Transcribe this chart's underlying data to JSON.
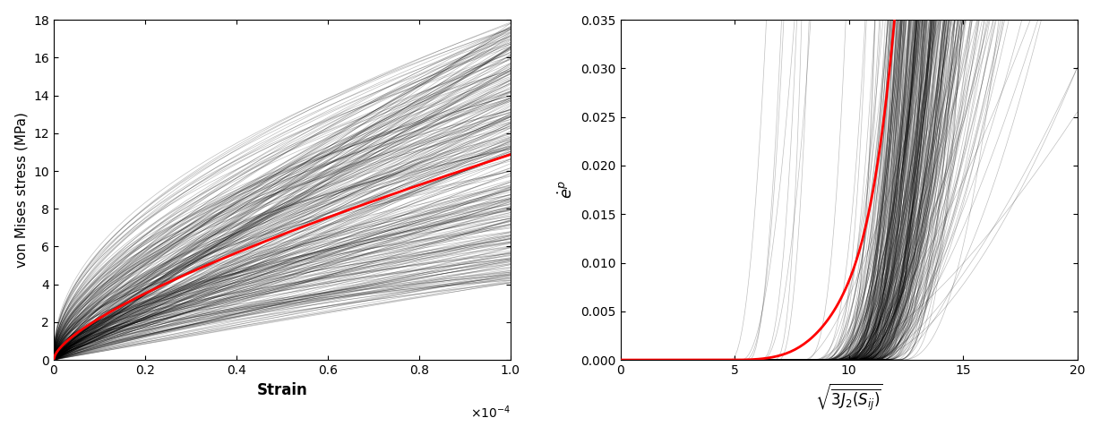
{
  "n_grains": 343,
  "left_xlim": [
    0,
    0.0001
  ],
  "left_ylim": [
    0,
    18
  ],
  "left_xlabel": "Strain",
  "left_ylabel": "von Mises stress (MPa)",
  "left_xticks": [
    0,
    0.2,
    0.4,
    0.6,
    0.8,
    1.0
  ],
  "left_yticks": [
    0,
    2,
    4,
    6,
    8,
    10,
    12,
    14,
    16,
    18
  ],
  "right_xlim": [
    0,
    20
  ],
  "right_ylim": [
    0,
    0.035
  ],
  "right_xticks": [
    0,
    5,
    10,
    15,
    20
  ],
  "right_yticks": [
    0,
    0.005,
    0.01,
    0.015,
    0.02,
    0.025,
    0.03,
    0.035
  ],
  "grain_color": "#000000",
  "grain_alpha": 0.25,
  "grain_lw": 0.5,
  "red_color": "red",
  "red_lw": 2.0,
  "fig_bg": "white",
  "seed": 42
}
